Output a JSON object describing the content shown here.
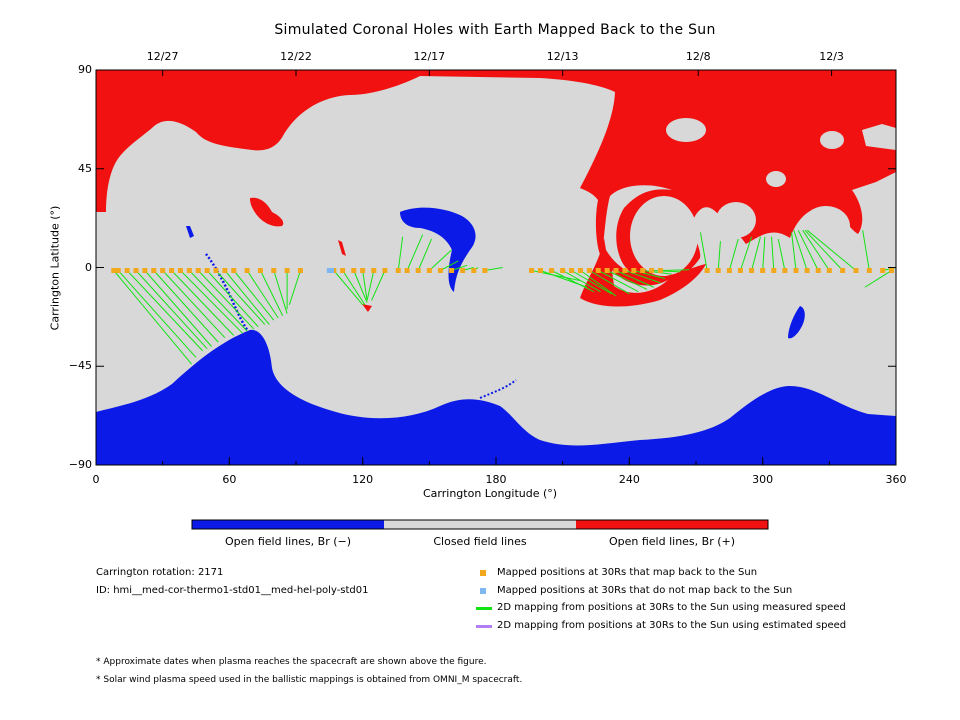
{
  "colors": {
    "open_neg": "#0b1ae6",
    "closed": "#d8d8d8",
    "open_pos": "#f21111",
    "mapped": "#f2a81c",
    "not_mapped": "#7fb8f0",
    "measured": "#13e313",
    "estimated": "#b27ff2"
  },
  "chart_data": {
    "type": "heatmap",
    "title": "Simulated Coronal Holes with Earth Mapped Back to the Sun",
    "xlabel": "Carrington Longitude (°)",
    "ylabel": "Carrington Latitude (°)",
    "xlim": [
      0,
      360
    ],
    "ylim": [
      -90,
      90
    ],
    "x_ticks": [
      "0",
      "60",
      "120",
      "180",
      "240",
      "300",
      "360"
    ],
    "y_ticks": [
      "90",
      "45",
      "0",
      "−45",
      "−90"
    ],
    "top_axis_dates": [
      {
        "label": "12/27",
        "lon": 30
      },
      {
        "label": "12/22",
        "lon": 90
      },
      {
        "label": "12/17",
        "lon": 150
      },
      {
        "label": "12/13",
        "lon": 210
      },
      {
        "label": "12/8",
        "lon": 271
      },
      {
        "label": "12/3",
        "lon": 331
      }
    ],
    "colorbar": [
      "Open field lines, Br (−)",
      "Closed field lines",
      "Open field lines, Br (+)"
    ],
    "mappings": [
      {
        "src": 8,
        "dst": [
          43,
          -44
        ]
      },
      {
        "src": 10,
        "dst": [
          45,
          -41
        ]
      },
      {
        "src": 14,
        "dst": [
          48,
          -38
        ]
      },
      {
        "src": 18,
        "dst": [
          50,
          -37
        ]
      },
      {
        "src": 22,
        "dst": [
          52,
          -36
        ]
      },
      {
        "src": 26,
        "dst": [
          55,
          -34
        ]
      },
      {
        "src": 30,
        "dst": [
          58,
          -32
        ]
      },
      {
        "src": 34,
        "dst": [
          62,
          -31
        ]
      },
      {
        "src": 38,
        "dst": [
          66,
          -30
        ]
      },
      {
        "src": 42,
        "dst": [
          68,
          -29
        ]
      },
      {
        "src": 46,
        "dst": [
          71,
          -28
        ]
      },
      {
        "src": 50,
        "dst": [
          73,
          -27
        ]
      },
      {
        "src": 54,
        "dst": [
          76,
          -26
        ]
      },
      {
        "src": 58,
        "dst": [
          78,
          -26
        ]
      },
      {
        "src": 62,
        "dst": [
          80,
          -24
        ]
      },
      {
        "src": 68,
        "dst": [
          82,
          -23
        ]
      },
      {
        "src": 74,
        "dst": [
          84,
          -22
        ]
      },
      {
        "src": 80,
        "dst": [
          86,
          -21
        ]
      },
      {
        "src": 86,
        "dst": [
          86,
          -19
        ]
      },
      {
        "src": 92,
        "dst": [
          87,
          -17
        ]
      },
      {
        "src": 107,
        "dst": [
          120,
          -17
        ]
      },
      {
        "src": 111,
        "dst": [
          121,
          -17
        ]
      },
      {
        "src": 116,
        "dst": [
          122,
          -16
        ]
      },
      {
        "src": 120,
        "dst": [
          122,
          -15
        ]
      },
      {
        "src": 125,
        "dst": [
          122,
          -15
        ]
      },
      {
        "src": 130,
        "dst": [
          124,
          -15
        ]
      },
      {
        "src": 136,
        "dst": [
          138,
          14
        ]
      },
      {
        "src": 140,
        "dst": [
          147,
          15
        ]
      },
      {
        "src": 145,
        "dst": [
          151,
          13
        ]
      },
      {
        "src": 150,
        "dst": [
          160,
          8
        ]
      },
      {
        "src": 155,
        "dst": [
          163,
          3
        ]
      },
      {
        "src": 160,
        "dst": [
          167,
          1
        ]
      },
      {
        "src": 165,
        "dst": [
          170,
          0
        ]
      },
      {
        "src": 170,
        "dst": [
          172,
          0
        ]
      },
      {
        "src": 175,
        "dst": [
          183,
          0
        ]
      },
      {
        "src": 196,
        "dst": [
          218,
          -6
        ]
      },
      {
        "src": 200,
        "dst": [
          221,
          -9
        ]
      },
      {
        "src": 205,
        "dst": [
          224,
          -11
        ]
      },
      {
        "src": 210,
        "dst": [
          227,
          -11
        ]
      },
      {
        "src": 214,
        "dst": [
          232,
          -12
        ]
      },
      {
        "src": 218,
        "dst": [
          234,
          -13
        ]
      },
      {
        "src": 222,
        "dst": [
          240,
          -12
        ]
      },
      {
        "src": 226,
        "dst": [
          244,
          -11
        ]
      },
      {
        "src": 230,
        "dst": [
          248,
          -10
        ]
      },
      {
        "src": 234,
        "dst": [
          251,
          -9
        ]
      },
      {
        "src": 238,
        "dst": [
          254,
          -7
        ]
      },
      {
        "src": 242,
        "dst": [
          256,
          -5
        ]
      },
      {
        "src": 246,
        "dst": [
          259,
          -3
        ]
      },
      {
        "src": 250,
        "dst": [
          263,
          -2
        ]
      },
      {
        "src": 254,
        "dst": [
          267,
          -1
        ]
      },
      {
        "src": 275,
        "dst": [
          272,
          16
        ]
      },
      {
        "src": 280,
        "dst": [
          281,
          12
        ]
      },
      {
        "src": 285,
        "dst": [
          289,
          13
        ]
      },
      {
        "src": 290,
        "dst": [
          295,
          14
        ]
      },
      {
        "src": 295,
        "dst": [
          299,
          14
        ]
      },
      {
        "src": 300,
        "dst": [
          301,
          14
        ]
      },
      {
        "src": 305,
        "dst": [
          304,
          14
        ]
      },
      {
        "src": 310,
        "dst": [
          307,
          13
        ]
      },
      {
        "src": 315,
        "dst": [
          313,
          16
        ]
      },
      {
        "src": 320,
        "dst": [
          314,
          17
        ]
      },
      {
        "src": 325,
        "dst": [
          316,
          17
        ]
      },
      {
        "src": 330,
        "dst": [
          318,
          17
        ]
      },
      {
        "src": 336,
        "dst": [
          319,
          17
        ]
      },
      {
        "src": 342,
        "dst": [
          320,
          17
        ]
      },
      {
        "src": 348,
        "dst": [
          345,
          17
        ]
      },
      {
        "src": 354,
        "dst": [
          360,
          0
        ]
      },
      {
        "src": 358,
        "dst": [
          346,
          -9
        ]
      }
    ],
    "unmapped_points": [
      105,
      106
    ]
  },
  "info": {
    "rotation": "Carrington rotation: 2171",
    "model_id": "ID: hmi__med-cor-thermo1-std01__med-hel-poly-std01"
  },
  "legend": {
    "mapped": "Mapped positions at 30Rs that map back to the Sun",
    "not_mapped": "Mapped positions at 30Rs that do not map back to the Sun",
    "measured": "2D mapping from positions at 30Rs to the Sun using measured speed",
    "estimated": "2D mapping from positions at 30Rs to the Sun using estimated speed"
  },
  "notes": {
    "dates": "* Approximate dates when plasma reaches the spacecraft are shown above the figure.",
    "speed": "* Solar wind plasma speed used in the ballistic mappings is obtained from OMNI_M spacecraft."
  }
}
